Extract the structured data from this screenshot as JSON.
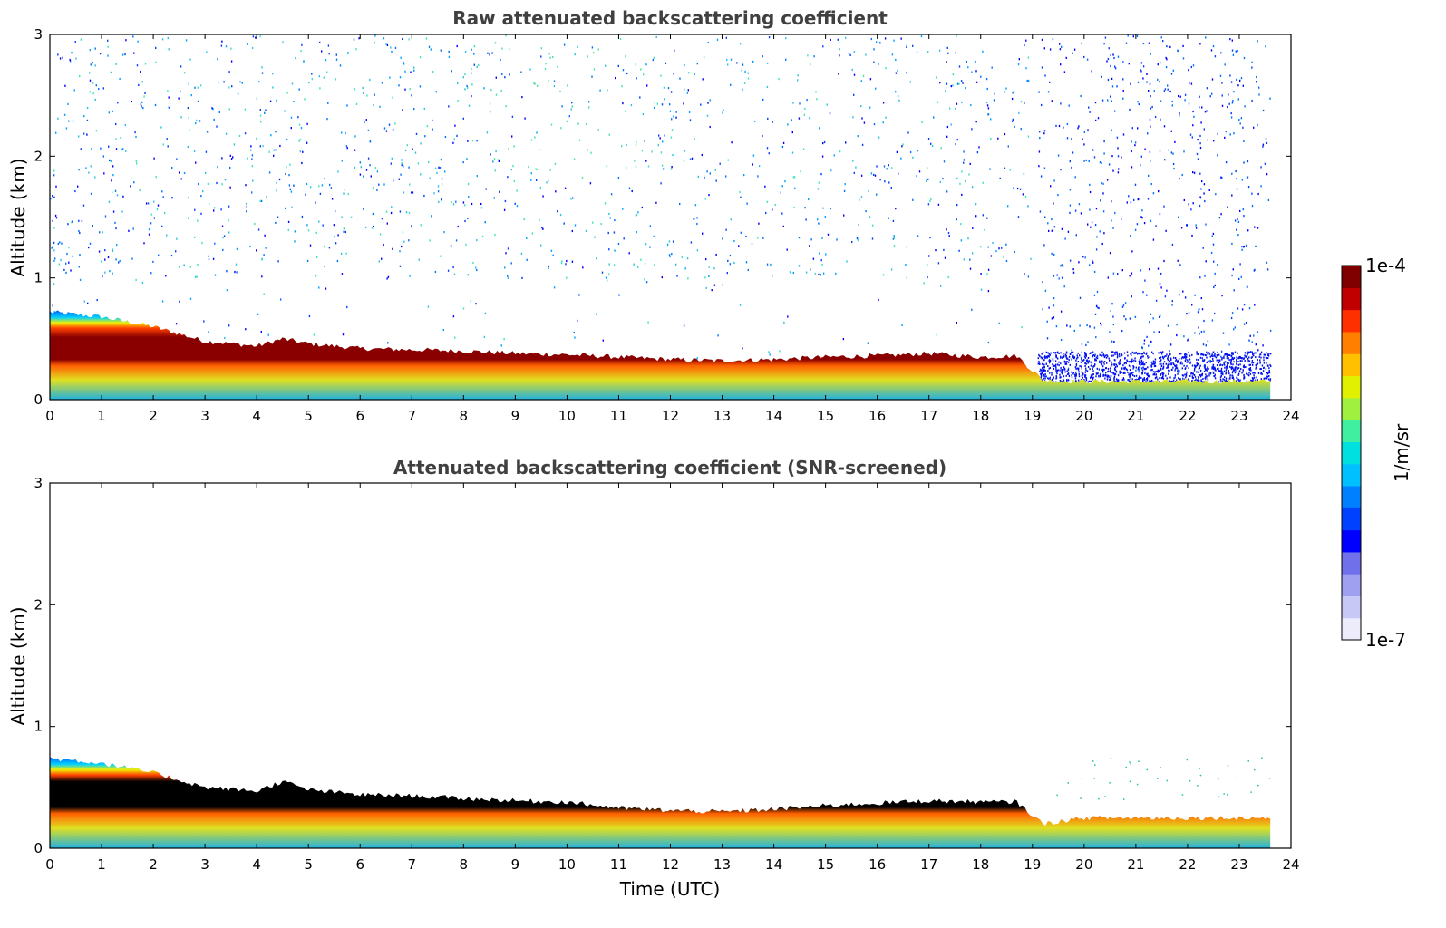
{
  "chart_data": [
    {
      "type": "heatmap",
      "title": "Raw attenuated backscattering coefficient",
      "xlabel": "",
      "ylabel": "Altitude (km)",
      "xlim": [
        0,
        24
      ],
      "ylim": [
        0,
        3
      ],
      "x_ticks": [
        "0",
        "1",
        "2",
        "3",
        "4",
        "5",
        "6",
        "7",
        "8",
        "9",
        "10",
        "11",
        "12",
        "13",
        "14",
        "15",
        "16",
        "17",
        "18",
        "19",
        "20",
        "21",
        "22",
        "23",
        "24"
      ],
      "y_ticks": [
        "0",
        "1",
        "2",
        "3"
      ],
      "layer_top_km": [
        {
          "t": 0,
          "h": 0.72
        },
        {
          "t": 1,
          "h": 0.68
        },
        {
          "t": 2,
          "h": 0.6
        },
        {
          "t": 3,
          "h": 0.48
        },
        {
          "t": 4,
          "h": 0.44
        },
        {
          "t": 4.5,
          "h": 0.5
        },
        {
          "t": 5,
          "h": 0.46
        },
        {
          "t": 6,
          "h": 0.42
        },
        {
          "t": 7,
          "h": 0.41
        },
        {
          "t": 8,
          "h": 0.4
        },
        {
          "t": 9,
          "h": 0.38
        },
        {
          "t": 10,
          "h": 0.37
        },
        {
          "t": 11,
          "h": 0.35
        },
        {
          "t": 12,
          "h": 0.33
        },
        {
          "t": 13,
          "h": 0.32
        },
        {
          "t": 14,
          "h": 0.33
        },
        {
          "t": 15,
          "h": 0.35
        },
        {
          "t": 16,
          "h": 0.36
        },
        {
          "t": 17,
          "h": 0.38
        },
        {
          "t": 18,
          "h": 0.35
        },
        {
          "t": 18.7,
          "h": 0.36
        },
        {
          "t": 19.2,
          "h": 0.16
        },
        {
          "t": 20,
          "h": 0.15
        },
        {
          "t": 23.6,
          "h": 0.15
        }
      ],
      "note_above_layer": "sparse noisy background signal up to 3 km; dense noise after ~19.1 UTC"
    },
    {
      "type": "heatmap",
      "title": "Attenuated backscattering coefficient (SNR-screened)",
      "xlabel": "Time (UTC)",
      "ylabel": "Altitude (km)",
      "xlim": [
        0,
        24
      ],
      "ylim": [
        0,
        3
      ],
      "x_ticks": [
        "0",
        "1",
        "2",
        "3",
        "4",
        "5",
        "6",
        "7",
        "8",
        "9",
        "10",
        "11",
        "12",
        "13",
        "14",
        "15",
        "16",
        "17",
        "18",
        "19",
        "20",
        "21",
        "22",
        "23",
        "24"
      ],
      "y_ticks": [
        "0",
        "1",
        "2",
        "3"
      ],
      "layer_top_km": [
        {
          "t": 0,
          "h": 0.74
        },
        {
          "t": 1,
          "h": 0.7
        },
        {
          "t": 2,
          "h": 0.62
        },
        {
          "t": 3,
          "h": 0.5
        },
        {
          "t": 4,
          "h": 0.47
        },
        {
          "t": 4.5,
          "h": 0.55
        },
        {
          "t": 5,
          "h": 0.48
        },
        {
          "t": 6,
          "h": 0.44
        },
        {
          "t": 7,
          "h": 0.43
        },
        {
          "t": 8,
          "h": 0.41
        },
        {
          "t": 9,
          "h": 0.39
        },
        {
          "t": 10,
          "h": 0.38
        },
        {
          "t": 11,
          "h": 0.33
        },
        {
          "t": 12,
          "h": 0.31
        },
        {
          "t": 13,
          "h": 0.3
        },
        {
          "t": 14,
          "h": 0.32
        },
        {
          "t": 15,
          "h": 0.35
        },
        {
          "t": 16,
          "h": 0.37
        },
        {
          "t": 17,
          "h": 0.39
        },
        {
          "t": 18,
          "h": 0.38
        },
        {
          "t": 18.7,
          "h": 0.38
        },
        {
          "t": 19.2,
          "h": 0.2
        },
        {
          "t": 20,
          "h": 0.25
        },
        {
          "t": 23.6,
          "h": 0.25
        }
      ],
      "note_above_layer": "screened: background removed"
    }
  ],
  "colorbar": {
    "max_label": "1e-4",
    "min_label": "1e-7",
    "unit_label": "1/m/sr",
    "scale": "log",
    "colors": [
      "#ececfa",
      "#c8c8f6",
      "#a0a0f0",
      "#7070ea",
      "#0000ff",
      "#0040ff",
      "#0080ff",
      "#00c0ff",
      "#00e0e0",
      "#40f0a0",
      "#a0f040",
      "#e0f000",
      "#ffc000",
      "#ff8000",
      "#ff3000",
      "#c00000",
      "#800000"
    ]
  }
}
